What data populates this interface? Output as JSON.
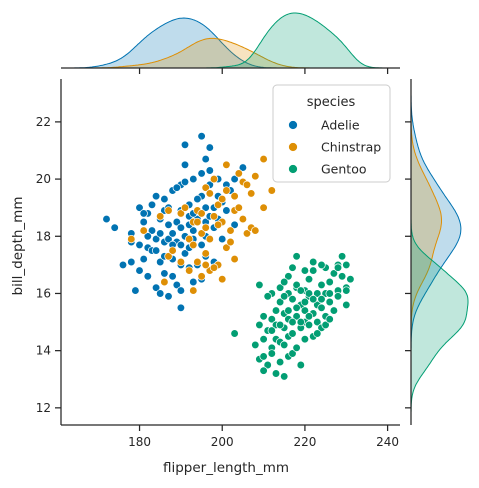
{
  "chart_data": {
    "type": "scatter",
    "xlabel": "flipper_length_mm",
    "ylabel": "bill_depth_mm",
    "xlim": [
      161,
      243
    ],
    "ylim": [
      11.4,
      23.5
    ],
    "xticks": [
      180,
      200,
      220,
      240
    ],
    "yticks": [
      12,
      14,
      16,
      18,
      20,
      22
    ],
    "grid": false,
    "legend": {
      "title": "species",
      "placement": "top-right"
    },
    "marginals": "kde",
    "series": [
      {
        "name": "Adelie",
        "color": "#0173b2",
        "points": [
          [
            172,
            18.6
          ],
          [
            174,
            18.3
          ],
          [
            176,
            17.0
          ],
          [
            178,
            17.1
          ],
          [
            178,
            18.1
          ],
          [
            179,
            16.1
          ],
          [
            180,
            16.8
          ],
          [
            180,
            19.0
          ],
          [
            181,
            18.5
          ],
          [
            181,
            17.2
          ],
          [
            182,
            17.6
          ],
          [
            182,
            18.8
          ],
          [
            182,
            16.6
          ],
          [
            183,
            18.2
          ],
          [
            183,
            17.5
          ],
          [
            184,
            19.4
          ],
          [
            184,
            16.2
          ],
          [
            184,
            17.9
          ],
          [
            185,
            18.6
          ],
          [
            185,
            17.1
          ],
          [
            185,
            16.0
          ],
          [
            186,
            19.3
          ],
          [
            186,
            17.8
          ],
          [
            186,
            18.9
          ],
          [
            186,
            16.7
          ],
          [
            187,
            17.9
          ],
          [
            187,
            18.4
          ],
          [
            187,
            15.9
          ],
          [
            188,
            16.6
          ],
          [
            188,
            18.1
          ],
          [
            188,
            19.6
          ],
          [
            188,
            17.2
          ],
          [
            189,
            18.5
          ],
          [
            189,
            16.3
          ],
          [
            189,
            17.8
          ],
          [
            190,
            18.9
          ],
          [
            190,
            17.0
          ],
          [
            190,
            19.8
          ],
          [
            190,
            16.1
          ],
          [
            190,
            18.3
          ],
          [
            190,
            15.5
          ],
          [
            191,
            20.5
          ],
          [
            191,
            17.4
          ],
          [
            191,
            18.0
          ],
          [
            191,
            21.2
          ],
          [
            192,
            18.7
          ],
          [
            192,
            16.9
          ],
          [
            192,
            19.1
          ],
          [
            192,
            17.6
          ],
          [
            193,
            17.9
          ],
          [
            193,
            16.4
          ],
          [
            193,
            18.2
          ],
          [
            193,
            20.0
          ],
          [
            194,
            18.6
          ],
          [
            194,
            17.0
          ],
          [
            195,
            18.1
          ],
          [
            195,
            19.4
          ],
          [
            195,
            21.5
          ],
          [
            195,
            16.5
          ],
          [
            195,
            17.7
          ],
          [
            196,
            18.5
          ],
          [
            196,
            20.7
          ],
          [
            196,
            17.3
          ],
          [
            196,
            19.0
          ],
          [
            197,
            18.7
          ],
          [
            197,
            19.8
          ],
          [
            197,
            21.1
          ],
          [
            198,
            19.0
          ],
          [
            198,
            18.3
          ],
          [
            198,
            17.1
          ],
          [
            199,
            20.0
          ],
          [
            199,
            18.6
          ],
          [
            200,
            19.2
          ],
          [
            201,
            18.9
          ],
          [
            202,
            19.6
          ],
          [
            203,
            18.4
          ],
          [
            181,
            18.8
          ],
          [
            183,
            19.1
          ],
          [
            185,
            18.1
          ],
          [
            187,
            19.0
          ],
          [
            189,
            19.7
          ],
          [
            191,
            19.9
          ],
          [
            193,
            18.8
          ],
          [
            195,
            20.2
          ],
          [
            197,
            20.3
          ],
          [
            199,
            19.4
          ],
          [
            201,
            19.8
          ],
          [
            203,
            20.0
          ],
          [
            205,
            20.4
          ],
          [
            186,
            17.3
          ],
          [
            184,
            17.5
          ],
          [
            188,
            17.7
          ],
          [
            190,
            17.7
          ],
          [
            192,
            18.4
          ],
          [
            194,
            19.3
          ],
          [
            196,
            18.0
          ],
          [
            182,
            18.0
          ],
          [
            180,
            17.7
          ],
          [
            178,
            17.8
          ],
          [
            200,
            17.9
          ]
        ]
      },
      {
        "name": "Chinstrap",
        "color": "#de8f05",
        "points": [
          [
            178,
            17.9
          ],
          [
            181,
            18.2
          ],
          [
            185,
            18.7
          ],
          [
            186,
            16.4
          ],
          [
            187,
            17.3
          ],
          [
            187,
            18.9
          ],
          [
            188,
            17.5
          ],
          [
            190,
            17.1
          ],
          [
            190,
            18.8
          ],
          [
            191,
            19.0
          ],
          [
            192,
            17.9
          ],
          [
            193,
            18.5
          ],
          [
            193,
            16.1
          ],
          [
            194,
            17.1
          ],
          [
            194,
            18.9
          ],
          [
            195,
            18.1
          ],
          [
            195,
            16.6
          ],
          [
            196,
            19.7
          ],
          [
            196,
            18.3
          ],
          [
            196,
            17.4
          ],
          [
            197,
            17.9
          ],
          [
            197,
            19.5
          ],
          [
            197,
            16.8
          ],
          [
            198,
            18.7
          ],
          [
            198,
            20.0
          ],
          [
            199,
            17.0
          ],
          [
            199,
            19.1
          ],
          [
            200,
            18.5
          ],
          [
            200,
            16.5
          ],
          [
            201,
            19.6
          ],
          [
            201,
            17.6
          ],
          [
            201,
            20.5
          ],
          [
            202,
            18.2
          ],
          [
            203,
            18.9
          ],
          [
            203,
            17.2
          ],
          [
            203,
            19.4
          ],
          [
            204,
            20.2
          ],
          [
            205,
            18.6
          ],
          [
            205,
            19.9
          ],
          [
            206,
            18.1
          ],
          [
            207,
            19.5
          ],
          [
            207,
            18.3
          ],
          [
            208,
            20.1
          ],
          [
            210,
            19.0
          ],
          [
            210,
            20.7
          ],
          [
            212,
            19.6
          ],
          [
            195,
            18.8
          ],
          [
            193,
            17.7
          ],
          [
            199,
            18.4
          ],
          [
            192,
            16.8
          ],
          [
            204,
            19.0
          ],
          [
            206,
            19.8
          ],
          [
            202,
            17.8
          ],
          [
            208,
            18.2
          ],
          [
            196,
            17.0
          ],
          [
            200,
            19.3
          ],
          [
            194,
            18.5
          ],
          [
            198,
            16.9
          ]
        ]
      },
      {
        "name": "Gentoo",
        "color": "#029e73",
        "points": [
          [
            203,
            14.6
          ],
          [
            208,
            14.2
          ],
          [
            209,
            13.7
          ],
          [
            209,
            14.9
          ],
          [
            210,
            13.8
          ],
          [
            210,
            14.4
          ],
          [
            210,
            15.2
          ],
          [
            211,
            13.5
          ],
          [
            211,
            14.7
          ],
          [
            212,
            14.1
          ],
          [
            212,
            13.9
          ],
          [
            212,
            15.1
          ],
          [
            213,
            14.4
          ],
          [
            213,
            13.2
          ],
          [
            213,
            14.9
          ],
          [
            214,
            15.7
          ],
          [
            214,
            14.3
          ],
          [
            214,
            13.6
          ],
          [
            215,
            14.8
          ],
          [
            215,
            15.3
          ],
          [
            215,
            13.1
          ],
          [
            215,
            14.2
          ],
          [
            216,
            14.5
          ],
          [
            216,
            16.0
          ],
          [
            216,
            13.8
          ],
          [
            216,
            15.1
          ],
          [
            217,
            14.6
          ],
          [
            217,
            13.9
          ],
          [
            217,
            15.8
          ],
          [
            218,
            15.2
          ],
          [
            218,
            14.1
          ],
          [
            218,
            16.2
          ],
          [
            219,
            14.8
          ],
          [
            219,
            15.6
          ],
          [
            219,
            13.5
          ],
          [
            220,
            15.0
          ],
          [
            220,
            16.1
          ],
          [
            220,
            14.4
          ],
          [
            220,
            15.4
          ],
          [
            221,
            14.9
          ],
          [
            221,
            15.9
          ],
          [
            221,
            16.5
          ],
          [
            222,
            15.3
          ],
          [
            222,
            14.5
          ],
          [
            222,
            16.8
          ],
          [
            223,
            15.0
          ],
          [
            223,
            16.0
          ],
          [
            223,
            15.6
          ],
          [
            224,
            14.8
          ],
          [
            224,
            16.3
          ],
          [
            224,
            15.5
          ],
          [
            225,
            15.2
          ],
          [
            225,
            16.0
          ],
          [
            225,
            16.9
          ],
          [
            226,
            15.7
          ],
          [
            226,
            16.4
          ],
          [
            227,
            15.4
          ],
          [
            228,
            16.1
          ],
          [
            228,
            17.0
          ],
          [
            228,
            15.9
          ],
          [
            229,
            16.6
          ],
          [
            229,
            17.3
          ],
          [
            230,
            15.6
          ],
          [
            230,
            16.2
          ],
          [
            230,
            17.0
          ],
          [
            231,
            16.5
          ],
          [
            214,
            16.2
          ],
          [
            216,
            16.6
          ],
          [
            218,
            16.3
          ],
          [
            220,
            16.8
          ],
          [
            222,
            17.1
          ],
          [
            224,
            17.0
          ],
          [
            226,
            16.0
          ],
          [
            212,
            16.0
          ],
          [
            210,
            13.3
          ],
          [
            215,
            16.4
          ],
          [
            217,
            15.0
          ],
          [
            219,
            15.0
          ],
          [
            221,
            15.2
          ],
          [
            223,
            14.6
          ],
          [
            225,
            14.9
          ],
          [
            227,
            16.7
          ],
          [
            219,
            16.1
          ],
          [
            221,
            16.0
          ],
          [
            217,
            16.9
          ],
          [
            213,
            15.4
          ],
          [
            211,
            15.9
          ],
          [
            209,
            16.3
          ],
          [
            215,
            15.9
          ],
          [
            218,
            15.5
          ],
          [
            222,
            15.8
          ],
          [
            220,
            15.7
          ],
          [
            224,
            15.8
          ],
          [
            226,
            15.1
          ],
          [
            228,
            16.9
          ],
          [
            230,
            16.1
          ],
          [
            218,
            17.3
          ],
          [
            214,
            14.9
          ],
          [
            216,
            15.4
          ],
          [
            212,
            14.7
          ]
        ]
      }
    ]
  }
}
